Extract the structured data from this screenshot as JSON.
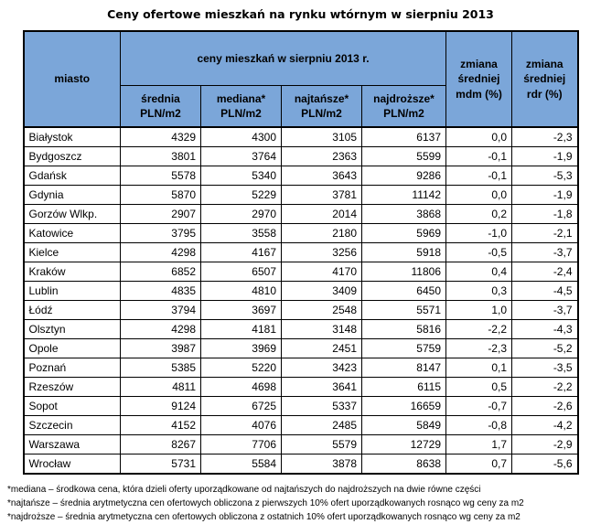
{
  "title": "Ceny ofertowe mieszkań na rynku wtórnym w sierpniu 2013",
  "colors": {
    "header_bg": "#7ba6d9",
    "border": "#000000",
    "background": "#ffffff",
    "text": "#000000"
  },
  "chart_data": {
    "type": "table",
    "title": "Ceny ofertowe mieszkań na rynku wtórnym w sierpniu 2013",
    "header": {
      "city": "miasto",
      "group": "ceny mieszkań w sierpniu 2013 r.",
      "subcolumns": [
        "średnia\nPLN/m2",
        "mediana*\nPLN/m2",
        "najtańsze*\nPLN/m2",
        "najdroższe*\nPLN/m2"
      ],
      "change_mdm": "zmiana\nśredniej\nmdm (%)",
      "change_rdr": "zmiana\nśredniej\nrdr (%)"
    },
    "rows": [
      {
        "city": "Białystok",
        "srednia": 4329,
        "mediana": 4300,
        "najtansze": 3105,
        "najdrozsze": 6137,
        "mdm": "0,0",
        "rdr": "-2,3"
      },
      {
        "city": "Bydgoszcz",
        "srednia": 3801,
        "mediana": 3764,
        "najtansze": 2363,
        "najdrozsze": 5599,
        "mdm": "-0,1",
        "rdr": "-1,9"
      },
      {
        "city": "Gdańsk",
        "srednia": 5578,
        "mediana": 5340,
        "najtansze": 3643,
        "najdrozsze": 9286,
        "mdm": "-0,1",
        "rdr": "-5,3"
      },
      {
        "city": "Gdynia",
        "srednia": 5870,
        "mediana": 5229,
        "najtansze": 3781,
        "najdrozsze": 11142,
        "mdm": "0,0",
        "rdr": "-1,9"
      },
      {
        "city": "Gorzów Wlkp.",
        "srednia": 2907,
        "mediana": 2970,
        "najtansze": 2014,
        "najdrozsze": 3868,
        "mdm": "0,2",
        "rdr": "-1,8"
      },
      {
        "city": "Katowice",
        "srednia": 3795,
        "mediana": 3558,
        "najtansze": 2180,
        "najdrozsze": 5969,
        "mdm": "-1,0",
        "rdr": "-2,1"
      },
      {
        "city": "Kielce",
        "srednia": 4298,
        "mediana": 4167,
        "najtansze": 3256,
        "najdrozsze": 5918,
        "mdm": "-0,5",
        "rdr": "-3,7"
      },
      {
        "city": "Kraków",
        "srednia": 6852,
        "mediana": 6507,
        "najtansze": 4170,
        "najdrozsze": 11806,
        "mdm": "0,4",
        "rdr": "-2,4"
      },
      {
        "city": "Lublin",
        "srednia": 4835,
        "mediana": 4810,
        "najtansze": 3409,
        "najdrozsze": 6450,
        "mdm": "0,3",
        "rdr": "-4,5"
      },
      {
        "city": "Łódź",
        "srednia": 3794,
        "mediana": 3697,
        "najtansze": 2548,
        "najdrozsze": 5571,
        "mdm": "1,0",
        "rdr": "-3,7"
      },
      {
        "city": "Olsztyn",
        "srednia": 4298,
        "mediana": 4181,
        "najtansze": 3148,
        "najdrozsze": 5816,
        "mdm": "-2,2",
        "rdr": "-4,3"
      },
      {
        "city": "Opole",
        "srednia": 3987,
        "mediana": 3969,
        "najtansze": 2451,
        "najdrozsze": 5759,
        "mdm": "-2,3",
        "rdr": "-5,2"
      },
      {
        "city": "Poznań",
        "srednia": 5385,
        "mediana": 5220,
        "najtansze": 3423,
        "najdrozsze": 8147,
        "mdm": "0,1",
        "rdr": "-3,5"
      },
      {
        "city": "Rzeszów",
        "srednia": 4811,
        "mediana": 4698,
        "najtansze": 3641,
        "najdrozsze": 6115,
        "mdm": "0,5",
        "rdr": "-2,2"
      },
      {
        "city": "Sopot",
        "srednia": 9124,
        "mediana": 6725,
        "najtansze": 5337,
        "najdrozsze": 16659,
        "mdm": "-0,7",
        "rdr": "-2,6"
      },
      {
        "city": "Szczecin",
        "srednia": 4152,
        "mediana": 4076,
        "najtansze": 2485,
        "najdrozsze": 5849,
        "mdm": "-0,8",
        "rdr": "-4,2"
      },
      {
        "city": "Warszawa",
        "srednia": 8267,
        "mediana": 7706,
        "najtansze": 5579,
        "najdrozsze": 12729,
        "mdm": "1,7",
        "rdr": "-2,9"
      },
      {
        "city": "Wrocław",
        "srednia": 5731,
        "mediana": 5584,
        "najtansze": 3878,
        "najdrozsze": 8638,
        "mdm": "0,7",
        "rdr": "-5,6"
      }
    ]
  },
  "footnotes": [
    "*mediana – środkowa cena, która dzieli oferty uporządkowane od najtańszych do najdroższych na dwie równe części",
    "*najtańsze – średnia arytmetyczna cen ofertowych obliczona z pierwszych 10% ofert uporządkowanych rosnąco wg ceny za m2",
    "*najdroższe – średnia arytmetyczna cen ofertowych obliczona z ostatnich 10% ofert uporządkowanych rosnąco wg ceny za m2"
  ]
}
